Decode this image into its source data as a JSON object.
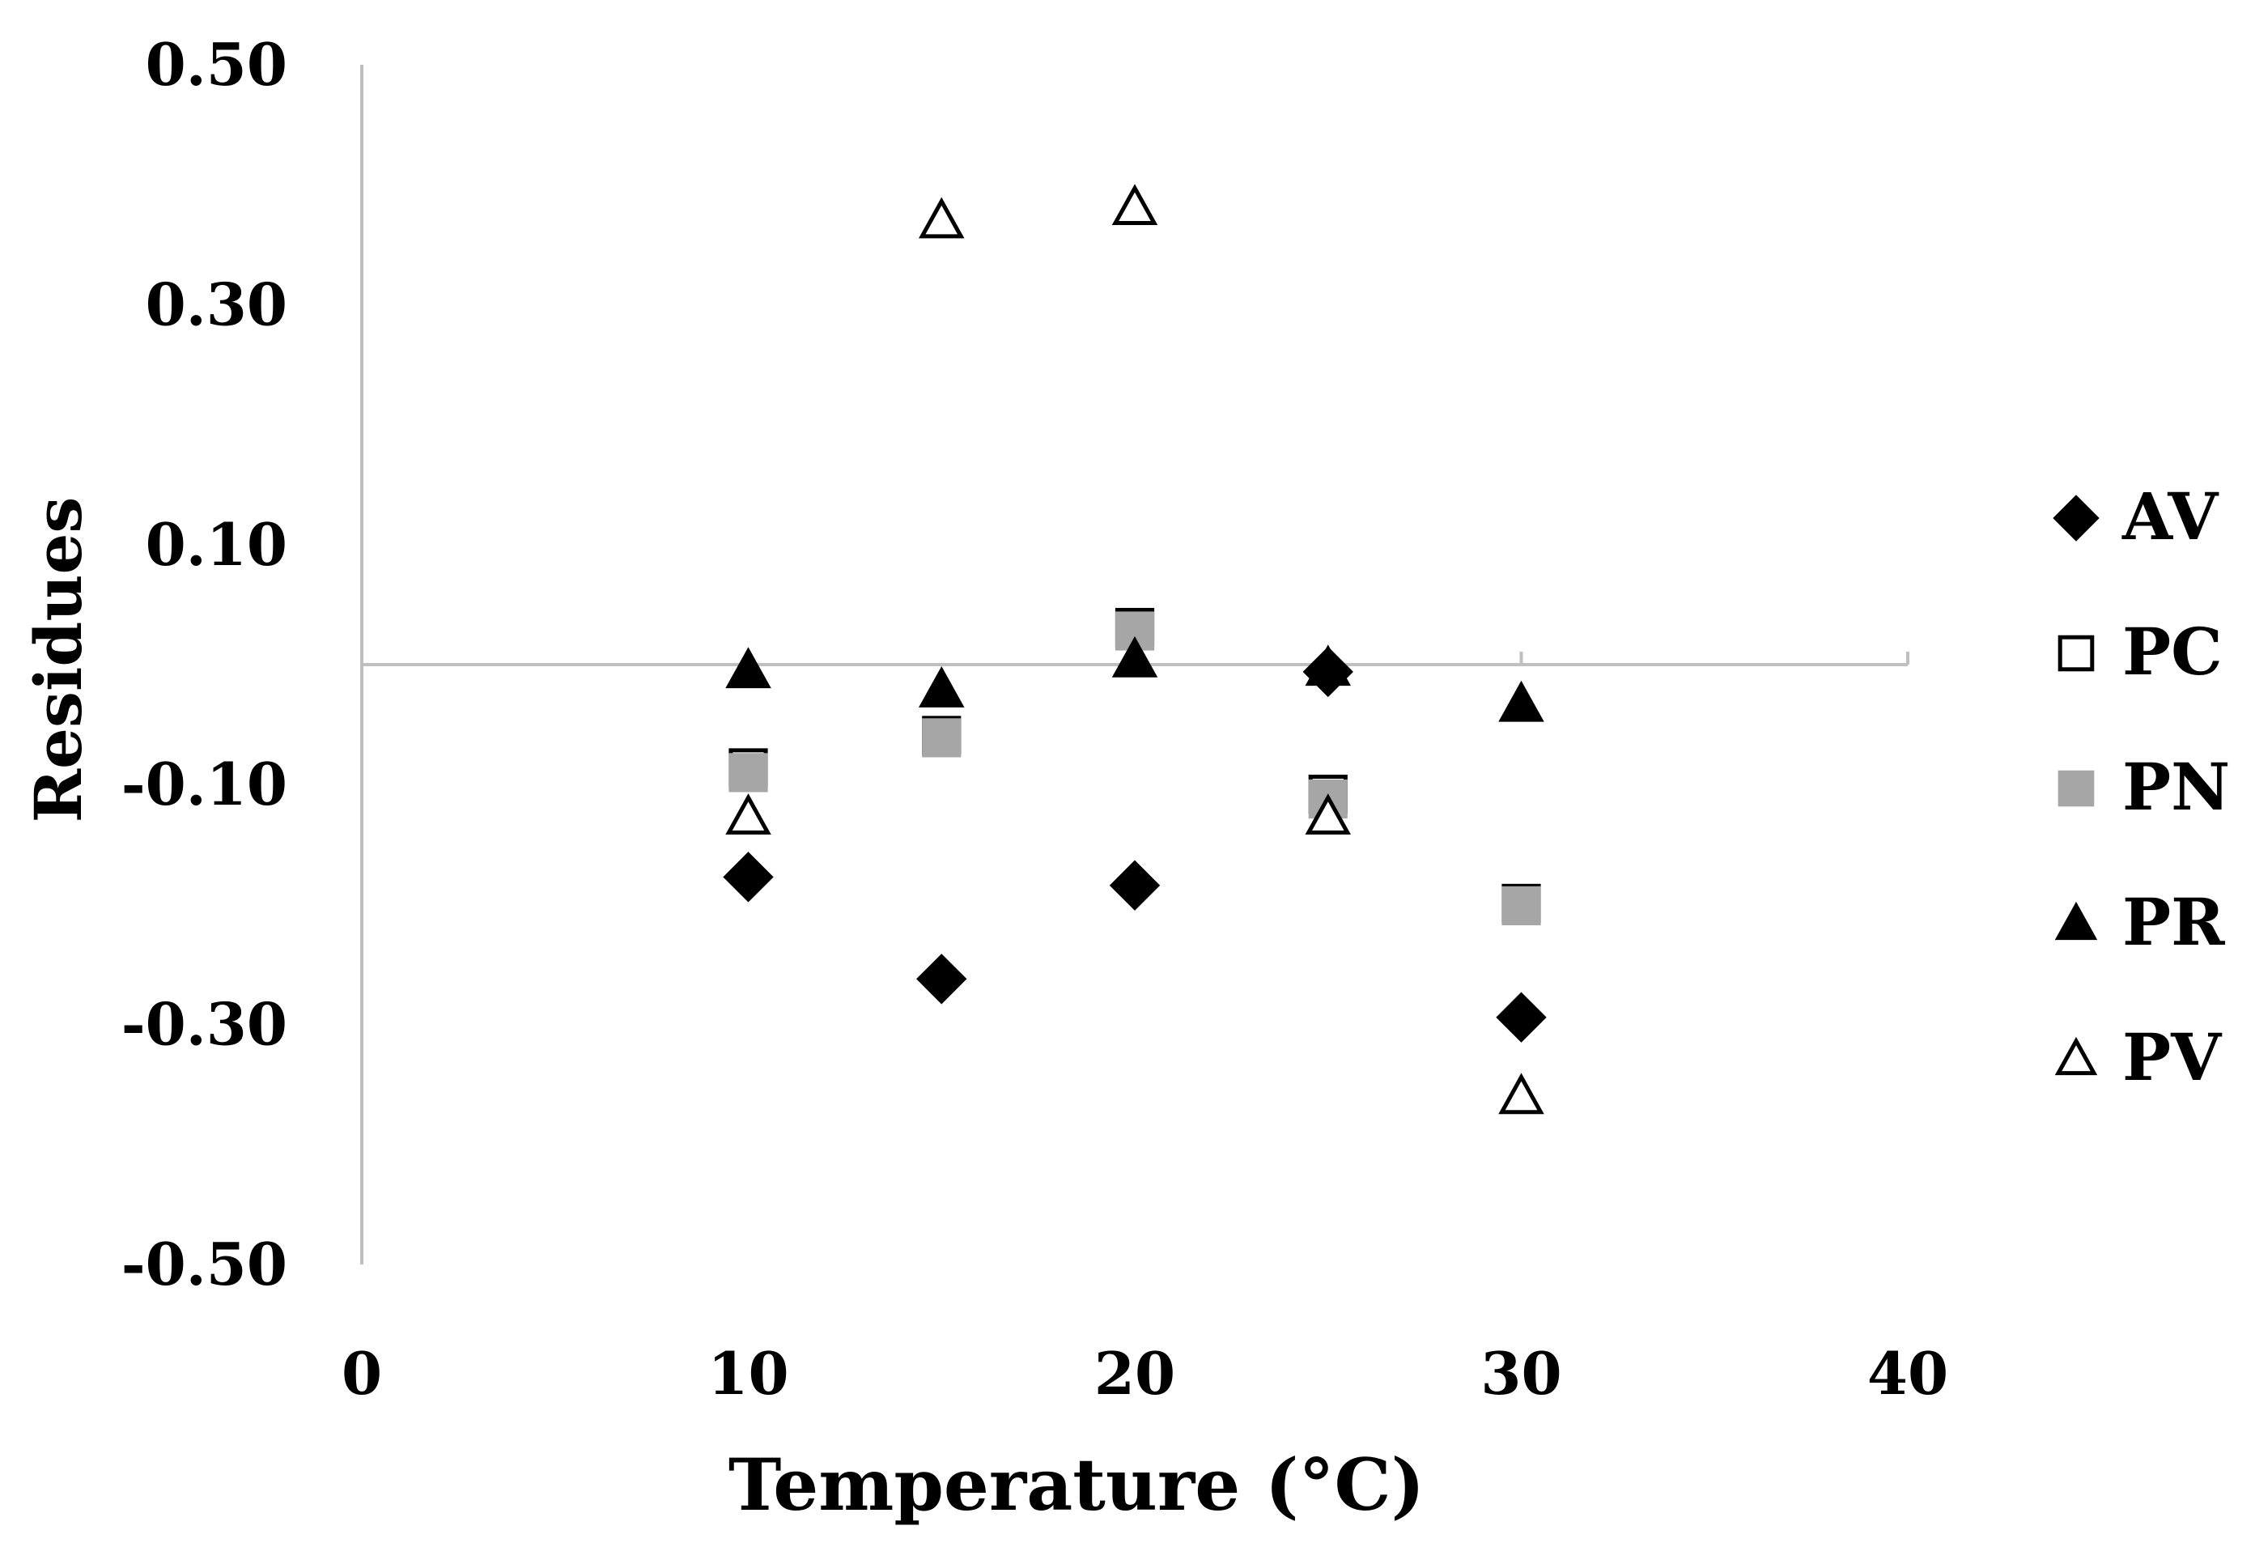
{
  "chart_data": {
    "type": "scatter",
    "title": "",
    "xlabel": "Temperature (°C)",
    "ylabel": "Residues",
    "xlim": [
      0,
      40
    ],
    "ylim": [
      -0.5,
      0.5
    ],
    "x_ticks": [
      0,
      10,
      20,
      30,
      40
    ],
    "x_tick_labels": [
      "0",
      "10",
      "20",
      "30",
      "40"
    ],
    "y_ticks": [
      0.5,
      0.3,
      0.1,
      -0.1,
      -0.3,
      -0.5
    ],
    "y_tick_labels": [
      "0.50",
      "0.30",
      "0.10",
      "-0.10",
      "-0.30",
      "-0.50"
    ],
    "grid": false,
    "legend_position": "right",
    "axis_color": "#bfbfbf",
    "series": [
      {
        "name": "AV",
        "marker": "diamond",
        "fill": "#000000",
        "stroke": "#000000",
        "points": [
          {
            "x": 10,
            "y": -0.177
          },
          {
            "x": 15,
            "y": -0.262
          },
          {
            "x": 20,
            "y": -0.184
          },
          {
            "x": 25,
            "y": -0.006
          },
          {
            "x": 30,
            "y": -0.294
          }
        ]
      },
      {
        "name": "PC",
        "marker": "square",
        "fill": "#ffffff",
        "stroke": "#000000",
        "points": [
          {
            "x": 10,
            "y": -0.086
          },
          {
            "x": 15,
            "y": -0.059
          },
          {
            "x": 20,
            "y": 0.031
          },
          {
            "x": 25,
            "y": -0.108
          },
          {
            "x": 30,
            "y": -0.199
          }
        ]
      },
      {
        "name": "PN",
        "marker": "square",
        "fill": "#a6a6a6",
        "stroke": "#a6a6a6",
        "points": [
          {
            "x": 10,
            "y": -0.09
          },
          {
            "x": 15,
            "y": -0.061
          },
          {
            "x": 20,
            "y": 0.028
          },
          {
            "x": 25,
            "y": -0.112
          },
          {
            "x": 30,
            "y": -0.201
          }
        ]
      },
      {
        "name": "PR",
        "marker": "triangle",
        "fill": "#000000",
        "stroke": "#000000",
        "points": [
          {
            "x": 10,
            "y": -0.005
          },
          {
            "x": 15,
            "y": -0.021
          },
          {
            "x": 20,
            "y": 0.004
          },
          {
            "x": 25,
            "y": -0.003
          },
          {
            "x": 30,
            "y": -0.033
          }
        ]
      },
      {
        "name": "PV",
        "marker": "triangle",
        "fill": "#ffffff",
        "stroke": "#000000",
        "points": [
          {
            "x": 10,
            "y": -0.127
          },
          {
            "x": 15,
            "y": 0.37
          },
          {
            "x": 20,
            "y": 0.381
          },
          {
            "x": 25,
            "y": -0.127
          },
          {
            "x": 30,
            "y": -0.36
          }
        ]
      }
    ]
  }
}
